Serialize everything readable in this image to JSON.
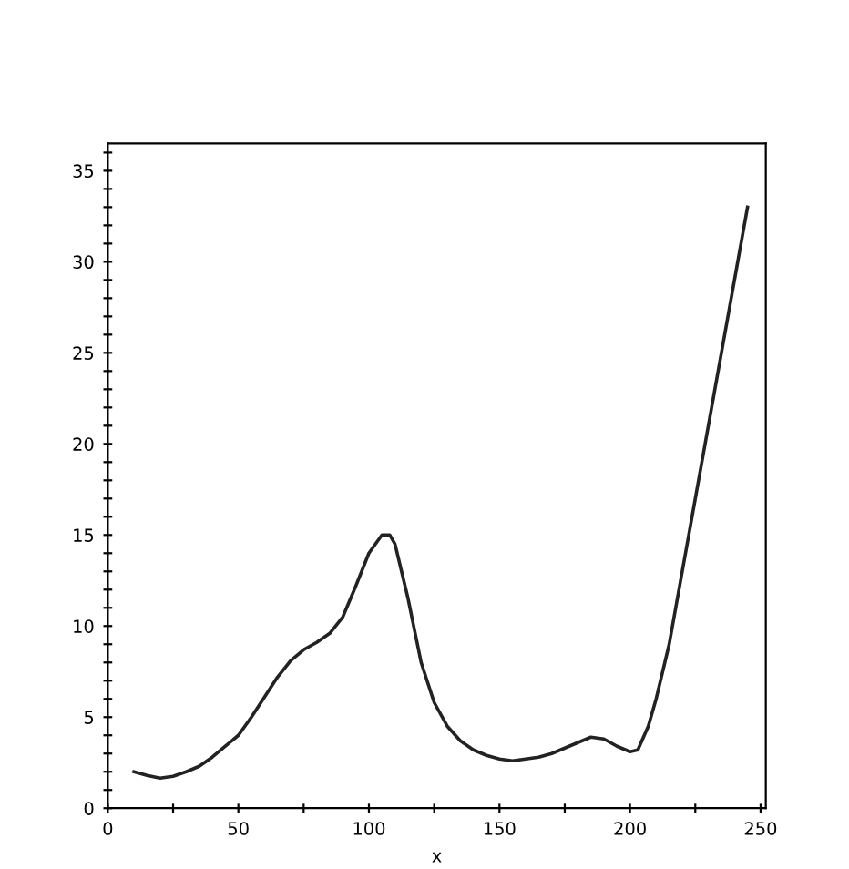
{
  "chart_data": {
    "type": "line",
    "xlabel": "x",
    "color": "#222222",
    "x": [
      10,
      15,
      20,
      25,
      30,
      35,
      40,
      45,
      50,
      55,
      60,
      65,
      70,
      75,
      80,
      85,
      90,
      95,
      100,
      105,
      108,
      110,
      115,
      120,
      125,
      130,
      135,
      140,
      145,
      150,
      155,
      160,
      165,
      170,
      175,
      180,
      185,
      190,
      195,
      200,
      203,
      207,
      210,
      215,
      220,
      225,
      230,
      235,
      240,
      245
    ],
    "values": [
      2,
      1.8,
      1.65,
      1.75,
      2.0,
      2.3,
      2.8,
      3.4,
      4.0,
      5.0,
      6.1,
      7.2,
      8.1,
      8.7,
      9.1,
      9.6,
      10.5,
      12.2,
      14,
      15,
      15,
      14.5,
      11.5,
      8,
      5.8,
      4.5,
      3.7,
      3.2,
      2.9,
      2.7,
      2.6,
      2.7,
      2.8,
      3.0,
      3.3,
      3.6,
      3.9,
      3.8,
      3.4,
      3.1,
      3.2,
      4.5,
      6,
      9,
      13,
      17,
      21,
      25,
      29,
      33
    ],
    "xlim": [
      0,
      252
    ],
    "ylim": [
      0,
      36.5
    ],
    "xticks": [
      0,
      {
        "value": 25,
        "label": null
      },
      50,
      {
        "value": 75,
        "label": null
      },
      100,
      {
        "value": 125,
        "label": null
      },
      150,
      {
        "value": 175,
        "label": null
      },
      200,
      {
        "value": 225,
        "label": null
      },
      250
    ],
    "yticks": [
      0,
      {
        "value": 1,
        "label": null
      },
      {
        "value": 2,
        "label": null
      },
      {
        "value": 3,
        "label": null
      },
      {
        "value": 4,
        "label": null
      },
      5,
      {
        "value": 6,
        "label": null
      },
      {
        "value": 7,
        "label": null
      },
      {
        "value": 8,
        "label": null
      },
      {
        "value": 9,
        "label": null
      },
      10,
      {
        "value": 11,
        "label": null
      },
      {
        "value": 12,
        "label": null
      },
      {
        "value": 13,
        "label": null
      },
      {
        "value": 14,
        "label": null
      },
      15,
      {
        "value": 16,
        "label": null
      },
      {
        "value": 17,
        "label": null
      },
      {
        "value": 18,
        "label": null
      },
      {
        "value": 19,
        "label": null
      },
      20,
      {
        "value": 21,
        "label": null
      },
      {
        "value": 22,
        "label": null
      },
      {
        "value": 23,
        "label": null
      },
      {
        "value": 24,
        "label": null
      },
      25,
      {
        "value": 26,
        "label": null
      },
      {
        "value": 27,
        "label": null
      },
      {
        "value": 28,
        "label": null
      },
      {
        "value": 29,
        "label": null
      },
      30,
      {
        "value": 31,
        "label": null
      },
      {
        "value": 32,
        "label": null
      },
      {
        "value": 33,
        "label": null
      },
      {
        "value": 34,
        "label": null
      },
      35,
      {
        "value": 36,
        "label": null
      }
    ],
    "grid": false,
    "line_style": "solid"
  }
}
